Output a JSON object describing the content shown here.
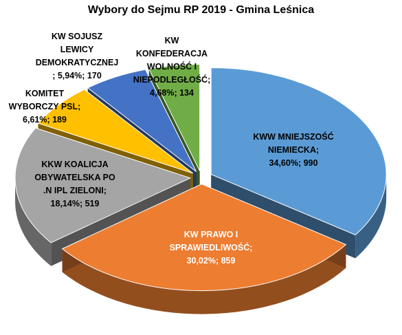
{
  "chart_data": {
    "type": "pie",
    "title": "Wybory do Sejmu RP 2019 - Gmina Leśnica",
    "slices": [
      {
        "name": "KWW MNIEJSZOŚĆ NIEMIECKA",
        "percent": 34.6,
        "value": 990,
        "color": "#5B9BD5",
        "label_lines": [
          "KWW MNIEJSZOŚĆ",
          "NIEMIECKA;",
          "34,60%; 990"
        ],
        "label_color": "#000000"
      },
      {
        "name": "KW PRAWO I SPRAWIEDLIWOŚĆ",
        "percent": 30.02,
        "value": 859,
        "color": "#ED7D31",
        "label_lines": [
          "KW PRAWO I",
          "SPRAWIEDLIWOŚĆ;",
          "30,02%; 859"
        ],
        "label_color": "#FFFFFF"
      },
      {
        "name": "KKW KOALICJA OBYWATELSKA PO .N IPL ZIELONI",
        "percent": 18.14,
        "value": 519,
        "color": "#A5A5A5",
        "label_lines": [
          "KKW KOALICJA",
          "OBYWATELSKA PO",
          ".N IPL ZIELONI;",
          "18,14%; 519"
        ],
        "label_color": "#000000"
      },
      {
        "name": "KOMITET WYBORCZY PSL",
        "percent": 6.61,
        "value": 189,
        "color": "#FFC000",
        "label_lines": [
          "KOMITET",
          "WYBORCZY PSL;",
          "6,61%; 189"
        ],
        "label_color": "#000000"
      },
      {
        "name": "KW SOJUSZ LEWICY DEMOKRATYCZNEJ",
        "percent": 5.94,
        "value": 170,
        "color": "#4472C4",
        "label_lines": [
          "KW SOJUSZ",
          "LEWICY",
          "DEMOKRATYCZNEJ",
          "; 5,94%; 170"
        ],
        "label_color": "#000000"
      },
      {
        "name": "KW KONFEDERACJA WOLNOŚĆ I NIEPODLEGŁOŚĆ",
        "percent": 4.68,
        "value": 134,
        "color": "#70AD47",
        "label_lines": [
          "KW",
          "KONFEDERACJA",
          "WOLNOŚĆ I",
          "NIEPODLEGŁOŚĆ;",
          "4,68%; 134"
        ],
        "label_color": "#000000"
      }
    ],
    "legend": "none",
    "style": "3d-exploded-pie"
  }
}
